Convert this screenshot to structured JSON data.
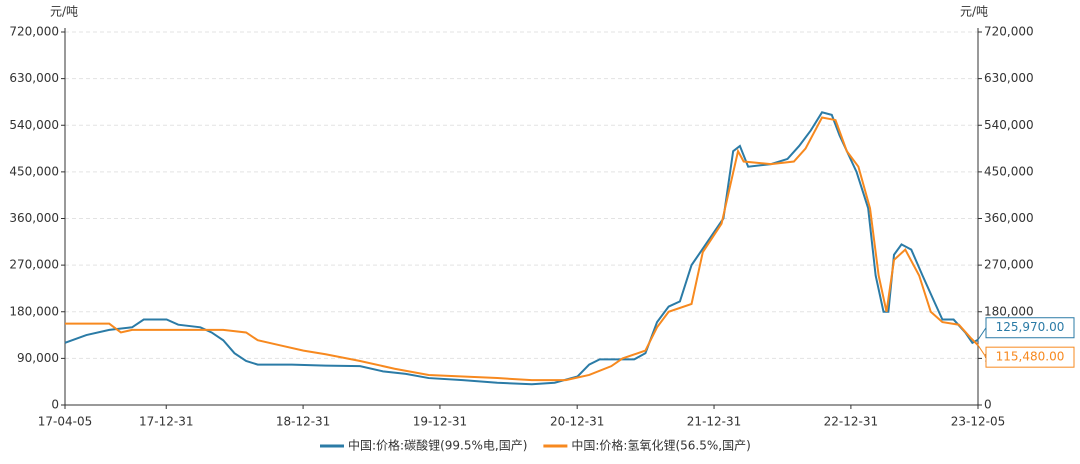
{
  "chart_data": {
    "type": "line",
    "y_unit": "元/吨",
    "y2_unit": "元/吨",
    "xlim": [
      "2017-04-05",
      "2023-12-05"
    ],
    "xticks": [
      {
        "value": "2017-04-05",
        "label": "17-04-05"
      },
      {
        "value": "2017-12-31",
        "label": "17-12-31"
      },
      {
        "value": "2018-12-31",
        "label": "18-12-31"
      },
      {
        "value": "2019-12-31",
        "label": "19-12-31"
      },
      {
        "value": "2020-12-31",
        "label": "20-12-31"
      },
      {
        "value": "2021-12-31",
        "label": "21-12-31"
      },
      {
        "value": "2022-12-31",
        "label": "22-12-31"
      },
      {
        "value": "2023-12-05",
        "label": "23-12-05"
      }
    ],
    "ylim": [
      0,
      720000
    ],
    "yticks": [
      0,
      {
        "value": 90000,
        "label": "90,000"
      },
      {
        "value": 180000,
        "label": "180,000"
      },
      {
        "value": 270000,
        "label": "270,000"
      },
      {
        "value": 360000,
        "label": "360,000"
      },
      {
        "value": 450000,
        "label": "450,000"
      },
      {
        "value": 540000,
        "label": "540,000"
      },
      {
        "value": 630000,
        "label": "630,000"
      },
      {
        "value": 720000,
        "label": "720,000"
      }
    ],
    "y2lim": [
      0,
      720000
    ],
    "y2ticks": [
      0,
      {
        "value": 90000,
        "label": "90,000"
      },
      {
        "value": 180000,
        "label": "180,000"
      },
      {
        "value": 270000,
        "label": "270,000"
      },
      {
        "value": 360000,
        "label": "360,000"
      },
      {
        "value": 450000,
        "label": "450,000"
      },
      {
        "value": 540000,
        "label": "540,000"
      },
      {
        "value": 630000,
        "label": "630,000"
      },
      {
        "value": 720000,
        "label": "720,000"
      }
    ],
    "grid": true,
    "legend": "bottom",
    "series": [
      {
        "name": "中国:价格:碳酸锂(99.5%电,国产)",
        "color": "#2b7ba6",
        "x": [
          "2017-04-05",
          "2017-06-01",
          "2017-08-01",
          "2017-10-01",
          "2017-11-01",
          "2018-01-01",
          "2018-02-01",
          "2018-04-01",
          "2018-05-01",
          "2018-06-01",
          "2018-07-01",
          "2018-08-01",
          "2018-09-01",
          "2018-12-01",
          "2019-03-01",
          "2019-06-01",
          "2019-08-01",
          "2019-10-01",
          "2019-12-01",
          "2020-03-01",
          "2020-06-01",
          "2020-09-01",
          "2020-11-01",
          "2021-01-01",
          "2021-02-01",
          "2021-03-01",
          "2021-06-01",
          "2021-07-01",
          "2021-08-01",
          "2021-09-01",
          "2021-10-01",
          "2021-11-01",
          "2022-01-25",
          "2022-02-20",
          "2022-03-10",
          "2022-04-01",
          "2022-06-01",
          "2022-07-15",
          "2022-08-15",
          "2022-09-15",
          "2022-10-15",
          "2022-11-10",
          "2022-12-01",
          "2023-01-15",
          "2023-02-15",
          "2023-03-07",
          "2023-03-28",
          "2023-04-10",
          "2023-04-25",
          "2023-05-15",
          "2023-06-10",
          "2023-07-10",
          "2023-08-10",
          "2023-09-01",
          "2023-10-01",
          "2023-11-01",
          "2023-11-20",
          "2023-12-05"
        ],
        "values": [
          120000,
          135000,
          145000,
          150000,
          165000,
          165000,
          155000,
          150000,
          140000,
          125000,
          100000,
          85000,
          78000,
          78000,
          76000,
          75000,
          65000,
          60000,
          52000,
          48000,
          43000,
          40000,
          43000,
          55000,
          78000,
          88000,
          88000,
          100000,
          160000,
          190000,
          200000,
          270000,
          360000,
          490000,
          500000,
          460000,
          465000,
          475000,
          500000,
          530000,
          565000,
          560000,
          520000,
          450000,
          380000,
          250000,
          180000,
          180000,
          290000,
          310000,
          300000,
          250000,
          200000,
          165000,
          165000,
          140000,
          120000,
          125970
        ],
        "end_label": {
          "value": 125970,
          "label": "125,970.00"
        }
      },
      {
        "name": "中国:价格:氢氧化锂(56.5%,国产)",
        "color": "#f7891f",
        "axis": "y2",
        "x": [
          "2017-04-05",
          "2017-08-01",
          "2017-09-01",
          "2017-10-01",
          "2018-06-01",
          "2018-08-01",
          "2018-09-01",
          "2018-11-01",
          "2019-01-01",
          "2019-03-01",
          "2019-06-01",
          "2019-09-01",
          "2019-12-01",
          "2020-03-01",
          "2020-06-01",
          "2020-09-01",
          "2020-12-01",
          "2021-02-01",
          "2021-04-01",
          "2021-05-01",
          "2021-07-01",
          "2021-08-01",
          "2021-09-01",
          "2021-11-01",
          "2021-12-01",
          "2022-01-20",
          "2022-03-05",
          "2022-03-20",
          "2022-06-01",
          "2022-08-01",
          "2022-09-01",
          "2022-10-15",
          "2022-11-20",
          "2022-12-20",
          "2023-01-20",
          "2023-02-20",
          "2023-03-15",
          "2023-04-05",
          "2023-04-25",
          "2023-05-25",
          "2023-07-01",
          "2023-08-01",
          "2023-09-01",
          "2023-10-15",
          "2023-11-15",
          "2023-12-05"
        ],
        "values": [
          157000,
          157000,
          140000,
          145000,
          145000,
          140000,
          125000,
          115000,
          105000,
          98000,
          85000,
          70000,
          58000,
          55000,
          52000,
          48000,
          48000,
          58000,
          75000,
          90000,
          105000,
          150000,
          180000,
          195000,
          295000,
          350000,
          490000,
          470000,
          465000,
          470000,
          495000,
          555000,
          550000,
          490000,
          460000,
          380000,
          250000,
          180000,
          280000,
          300000,
          250000,
          180000,
          160000,
          155000,
          130000,
          115480
        ],
        "end_label": {
          "value": 115480,
          "label": "115,480.00"
        }
      }
    ]
  }
}
